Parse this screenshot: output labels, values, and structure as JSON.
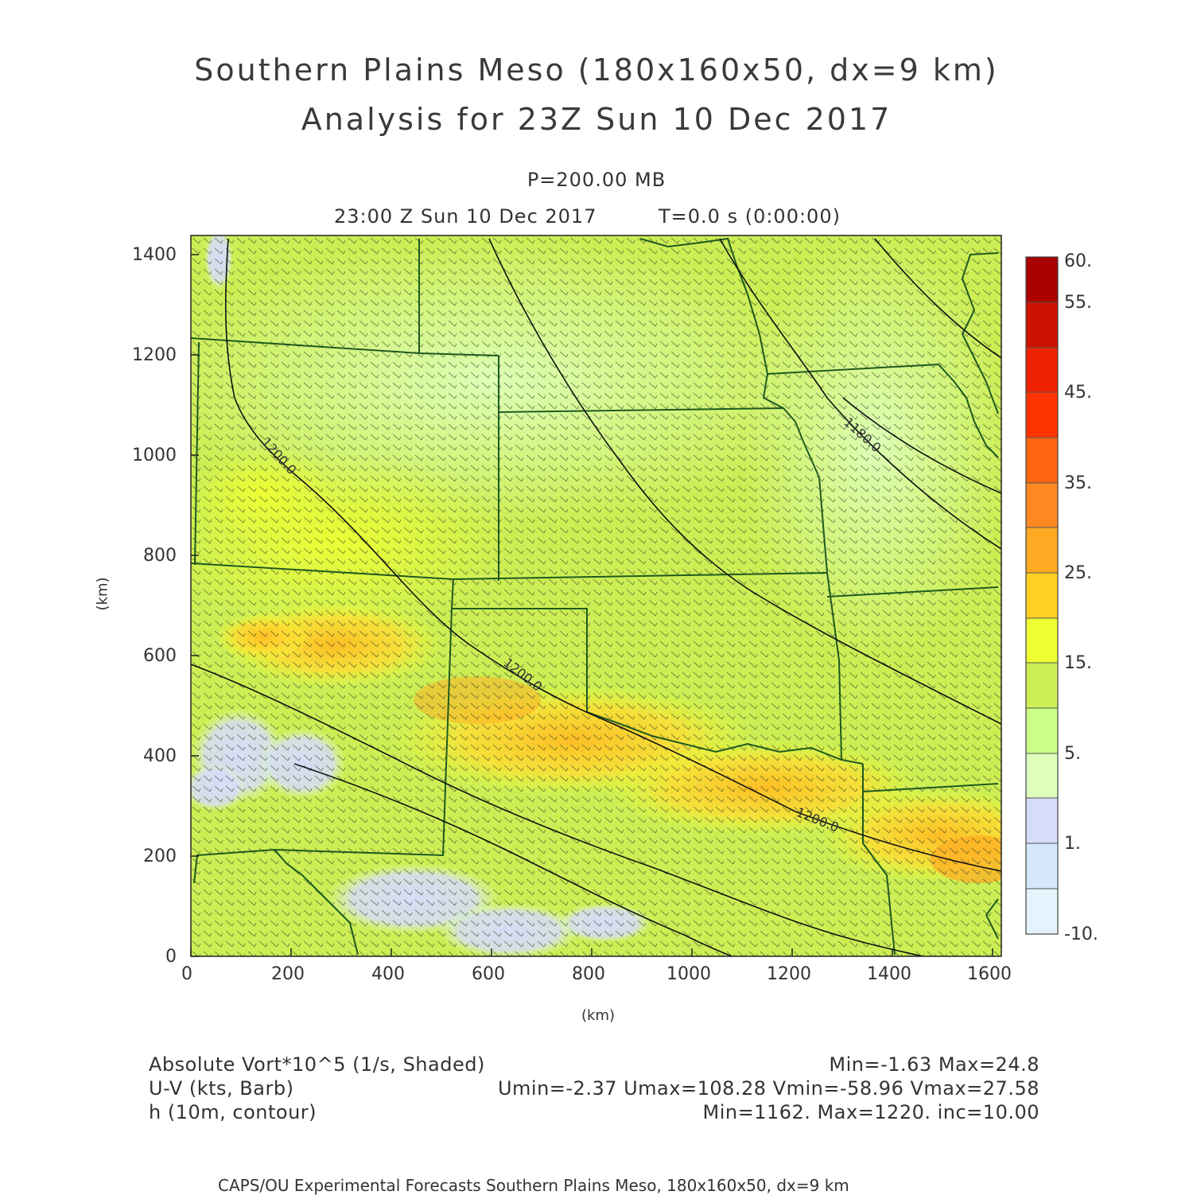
{
  "title": {
    "line1": "Southern Plains Meso (180x160x50, dx=9 km)",
    "line2": "Analysis for 23Z Sun 10 Dec 2017"
  },
  "subtitle": {
    "level": "P=200.00 MB",
    "time_left": "23:00 Z Sun 10 Dec 2017",
    "time_right": "T=0.0 s (0:00:00)"
  },
  "axes": {
    "xlabel": "(km)",
    "ylabel": "(km)",
    "xticks": [
      "0",
      "200",
      "400",
      "600",
      "800",
      "1000",
      "1200",
      "1400",
      "1600"
    ],
    "yticks": [
      "0",
      "200",
      "400",
      "600",
      "800",
      "1000",
      "1200",
      "1400"
    ],
    "xlim": [
      0,
      1620
    ],
    "ylim": [
      0,
      1440
    ]
  },
  "colorbar": {
    "labels": [
      "60.",
      "55.",
      "45.",
      "35.",
      "25.",
      "15.",
      "5.",
      "1.",
      "-10."
    ],
    "colors": [
      "#aa0000",
      "#cc1100",
      "#ee2200",
      "#ff4400",
      "#ff7722",
      "#ff9922",
      "#ffbb22",
      "#ffdd33",
      "#eeff33",
      "#ccee55",
      "#ccff88",
      "#ddffbb",
      "#d6ddf8",
      "#d4e8fa",
      "#e4f4fc"
    ]
  },
  "contours": {
    "labels": [
      "1200.0",
      "1200.0",
      "1200.0",
      "1180.0"
    ]
  },
  "footer": {
    "field1_name": "Absolute Vort*10^5 (1/s, Shaded)",
    "field1_stats": "Min=-1.63 Max=24.8",
    "field2_name": "U-V (kts, Barb)",
    "field2_stats": "Umin=-2.37 Umax=108.28 Vmin=-58.96 Vmax=27.58",
    "field3_name": "h (10m, contour)",
    "field3_stats": "Min=1162. Max=1220. inc=10.00",
    "credit": "CAPS/OU Experimental Forecasts  Southern Plains Meso, 180x160x50, dx=9 km"
  }
}
